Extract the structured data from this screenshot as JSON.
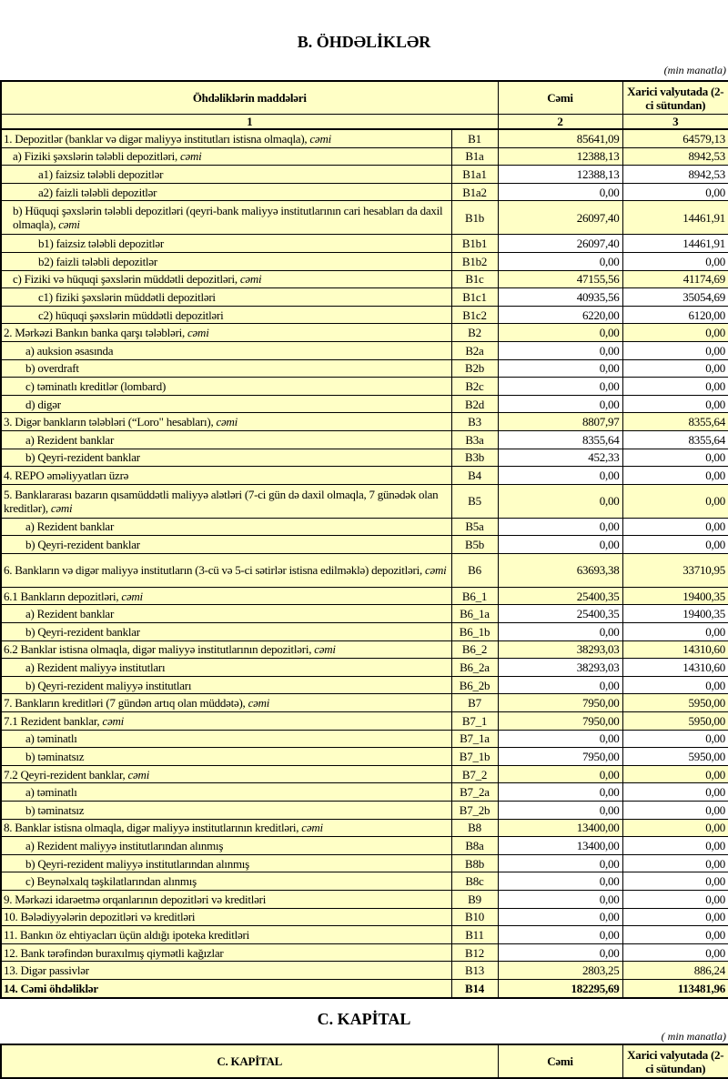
{
  "section_b": {
    "title": "B. ÖHDƏLİKLƏR",
    "unit": "(min manatla)",
    "header": {
      "col1": "Öhdəliklərin maddələri",
      "col2": "Cəmi",
      "col3": "Xarici valyutada (2-ci sütundan)"
    },
    "col_numbers": [
      "1",
      "2",
      "3"
    ],
    "rows": [
      {
        "label": "1. Depozitlər (banklar və digər maliyyə institutları istisna olmaqla), ",
        "suffix": "cəmi",
        "code": "B1",
        "total": "85641,09",
        "foreign": "64579,13",
        "level": 0,
        "highlight": true
      },
      {
        "label": "a)  Fiziki şəxslərin tələbli depozitləri, ",
        "suffix": "cəmi",
        "code": "B1a",
        "total": "12388,13",
        "foreign": "8942,53",
        "level": 1,
        "highlight": true
      },
      {
        "label": "a1) faizsiz tələbli depozitlər",
        "code": "B1a1",
        "total": "12388,13",
        "foreign": "8942,53",
        "level": 2
      },
      {
        "label": "a2) faizli tələbli depozitlər",
        "code": "B1a2",
        "total": "0,00",
        "foreign": "0,00",
        "level": 2
      },
      {
        "label": "b) Hüquqi şəxslərin tələbli depozitləri (qeyri-bank maliyyə institutlarının cari hesabları da daxil olmaqla), ",
        "suffix": "cəmi",
        "code": "B1b",
        "total": "26097,40",
        "foreign": "14461,91",
        "level": 1,
        "highlight": true,
        "two_line": true
      },
      {
        "label": "b1) faizsiz tələbli depozitlər",
        "code": "B1b1",
        "total": "26097,40",
        "foreign": "14461,91",
        "level": 2
      },
      {
        "label": "b2) faizli tələbli depozitlər",
        "code": "B1b2",
        "total": "0,00",
        "foreign": "0,00",
        "level": 2
      },
      {
        "label": "c) Fiziki və hüquqi şəxslərin müddətli depozitləri, ",
        "suffix": "cəmi",
        "code": "B1c",
        "total": "47155,56",
        "foreign": "41174,69",
        "level": 1,
        "highlight": true
      },
      {
        "label": "c1) fiziki şəxslərin müddətli depozitləri",
        "code": "B1c1",
        "total": "40935,56",
        "foreign": "35054,69",
        "level": 2
      },
      {
        "label": "c2) hüquqi şəxslərin müddətli depozitləri",
        "code": "B1c2",
        "total": "6220,00",
        "foreign": "6120,00",
        "level": 2
      },
      {
        "label": "2. Mərkəzi Bankın banka qarşı tələbləri, ",
        "suffix": "cəmi",
        "code": "B2",
        "total": "0,00",
        "foreign": "0,00",
        "level": 0,
        "highlight": true
      },
      {
        "label": "a) auksion əsasında",
        "code": "B2a",
        "total": "0,00",
        "foreign": "0,00",
        "level": 3
      },
      {
        "label": "b) overdraft",
        "code": "B2b",
        "total": "0,00",
        "foreign": "0,00",
        "level": 3
      },
      {
        "label": "c) təminatlı kreditlər (lombard)",
        "code": "B2c",
        "total": "0,00",
        "foreign": "0,00",
        "level": 3
      },
      {
        "label": "d) digər",
        "code": "B2d",
        "total": "0,00",
        "foreign": "0,00",
        "level": 3
      },
      {
        "label": "3. Digər bankların tələbləri (“Loro\" hesabları), ",
        "suffix": "cəmi",
        "code": "B3",
        "total": "8807,97",
        "foreign": "8355,64",
        "level": 0,
        "highlight": true
      },
      {
        "label": "a) Rezident banklar",
        "code": "B3a",
        "total": "8355,64",
        "foreign": "8355,64",
        "level": 3
      },
      {
        "label": "b) Qeyri-rezident banklar",
        "code": "B3b",
        "total": "452,33",
        "foreign": "0,00",
        "level": 3
      },
      {
        "label": "4. REPO əməliyyatları  üzrə",
        "code": "B4",
        "total": "0,00",
        "foreign": "0,00",
        "level": 0
      },
      {
        "label": "5. Banklararası bazarın qısamüddətli maliyyə alətləri (7-ci gün də daxil olmaqla, 7 günədək olan kreditlər), ",
        "suffix": "cəmi",
        "code": "B5",
        "total": "0,00",
        "foreign": "0,00",
        "level": 0,
        "highlight": true,
        "two_line": true
      },
      {
        "label": "a) Rezident banklar",
        "code": "B5a",
        "total": "0,00",
        "foreign": "0,00",
        "level": 3
      },
      {
        "label": "b) Qeyri-rezident banklar",
        "code": "B5b",
        "total": "0,00",
        "foreign": "0,00",
        "level": 3
      },
      {
        "label": "6. Bankların və digər maliyyə institutların (3-cü və 5-ci sətirlər istisna edilməklə) depozitləri, ",
        "suffix": "cəmi",
        "code": "B6",
        "total": "63693,38",
        "foreign": "33710,95",
        "level": 0,
        "highlight": true,
        "two_line": true
      },
      {
        "label": "6.1  Bankların depozitləri, ",
        "suffix": "cəmi",
        "code": "B6_1",
        "total": "25400,35",
        "foreign": "19400,35",
        "level": 0,
        "highlight": true
      },
      {
        "label": "a) Rezident banklar",
        "code": "B6_1a",
        "total": "25400,35",
        "foreign": "19400,35",
        "level": 3
      },
      {
        "label": "b) Qeyri-rezident banklar",
        "code": "B6_1b",
        "total": "0,00",
        "foreign": "0,00",
        "level": 3
      },
      {
        "label": "6.2 Banklar istisna olmaqla, digər maliyyə institutlarının depozitləri, ",
        "suffix": "cəmi",
        "code": "B6_2",
        "total": "38293,03",
        "foreign": "14310,60",
        "level": 0,
        "highlight": true
      },
      {
        "label": "a) Rezident maliyyə institutları",
        "code": "B6_2a",
        "total": "38293,03",
        "foreign": "14310,60",
        "level": 3
      },
      {
        "label": "b) Qeyri-rezident maliyyə institutları",
        "code": "B6_2b",
        "total": "0,00",
        "foreign": "0,00",
        "level": 3
      },
      {
        "label": "7. Bankların kreditləri (7 gündən artıq olan müddətə), ",
        "suffix": "cəmi",
        "code": "B7",
        "total": "7950,00",
        "foreign": "5950,00",
        "level": 0,
        "highlight": true
      },
      {
        "label": "7.1 Rezident banklar, ",
        "suffix": "cəmi",
        "code": "B7_1",
        "total": "7950,00",
        "foreign": "5950,00",
        "level": 0,
        "highlight": true
      },
      {
        "label": "a) təminatlı",
        "code": "B7_1a",
        "total": "0,00",
        "foreign": "0,00",
        "level": 3
      },
      {
        "label": "b) təminatsız",
        "code": "B7_1b",
        "total": "7950,00",
        "foreign": "5950,00",
        "level": 3
      },
      {
        "label": "7.2 Qeyri-rezident banklar, ",
        "suffix": "cəmi",
        "code": "B7_2",
        "total": "0,00",
        "foreign": "0,00",
        "level": 0,
        "highlight": true
      },
      {
        "label": "a) təminatlı",
        "code": "B7_2a",
        "total": "0,00",
        "foreign": "0,00",
        "level": 3
      },
      {
        "label": "b) təminatsız",
        "code": "B7_2b",
        "total": "0,00",
        "foreign": "0,00",
        "level": 3
      },
      {
        "label": "8. Banklar istisna olmaqla, digər maliyyə institutlarının kreditləri, ",
        "suffix": "cəmi",
        "code": "B8",
        "total": "13400,00",
        "foreign": "0,00",
        "level": 0,
        "highlight": true
      },
      {
        "label": "a) Rezident maliyyə institutlarından alınmış",
        "code": "B8a",
        "total": "13400,00",
        "foreign": "0,00",
        "level": 3
      },
      {
        "label": "b) Qeyri-rezident maliyyə institutlarından alınmış",
        "code": "B8b",
        "total": "0,00",
        "foreign": "0,00",
        "level": 3
      },
      {
        "label": "c) Beynəlxalq təşkilatlarından alınmış",
        "code": "B8c",
        "total": "0,00",
        "foreign": "0,00",
        "level": 3
      },
      {
        "label": "9. Mərkəzi idarəetmə orqanlarının depozitləri və kreditləri",
        "code": "B9",
        "total": "0,00",
        "foreign": "0,00",
        "level": 0
      },
      {
        "label": "10. Bələdiyyələrin depozitləri və kreditləri",
        "code": "B10",
        "total": "0,00",
        "foreign": "0,00",
        "level": 0
      },
      {
        "label": "11. Bankın öz ehtiyacları üçün aldığı ipoteka kreditləri",
        "code": "B11",
        "total": "0,00",
        "foreign": "0,00",
        "level": 0
      },
      {
        "label": "12. Bank tərəfindən buraxılmış qiymətli kağızlar",
        "code": "B12",
        "total": "0,00",
        "foreign": "0,00",
        "level": 0
      },
      {
        "label": "13. Digər passivlər",
        "code": "B13",
        "total": "2803,25",
        "foreign": "886,24",
        "level": 0,
        "highlight": true
      },
      {
        "label": "14. Cəmi öhdəliklər",
        "code": "B14",
        "total": "182295,69",
        "foreign": "113481,96",
        "level": 0,
        "highlight": true,
        "bold": true
      }
    ]
  },
  "section_c": {
    "title": "C. KAPİTAL",
    "unit": "( min manatla)",
    "header": {
      "col1": "C. KAPİTAL",
      "col2": "Cəmi",
      "col3": "Xarici valyutada (2-ci sütundan)"
    }
  }
}
